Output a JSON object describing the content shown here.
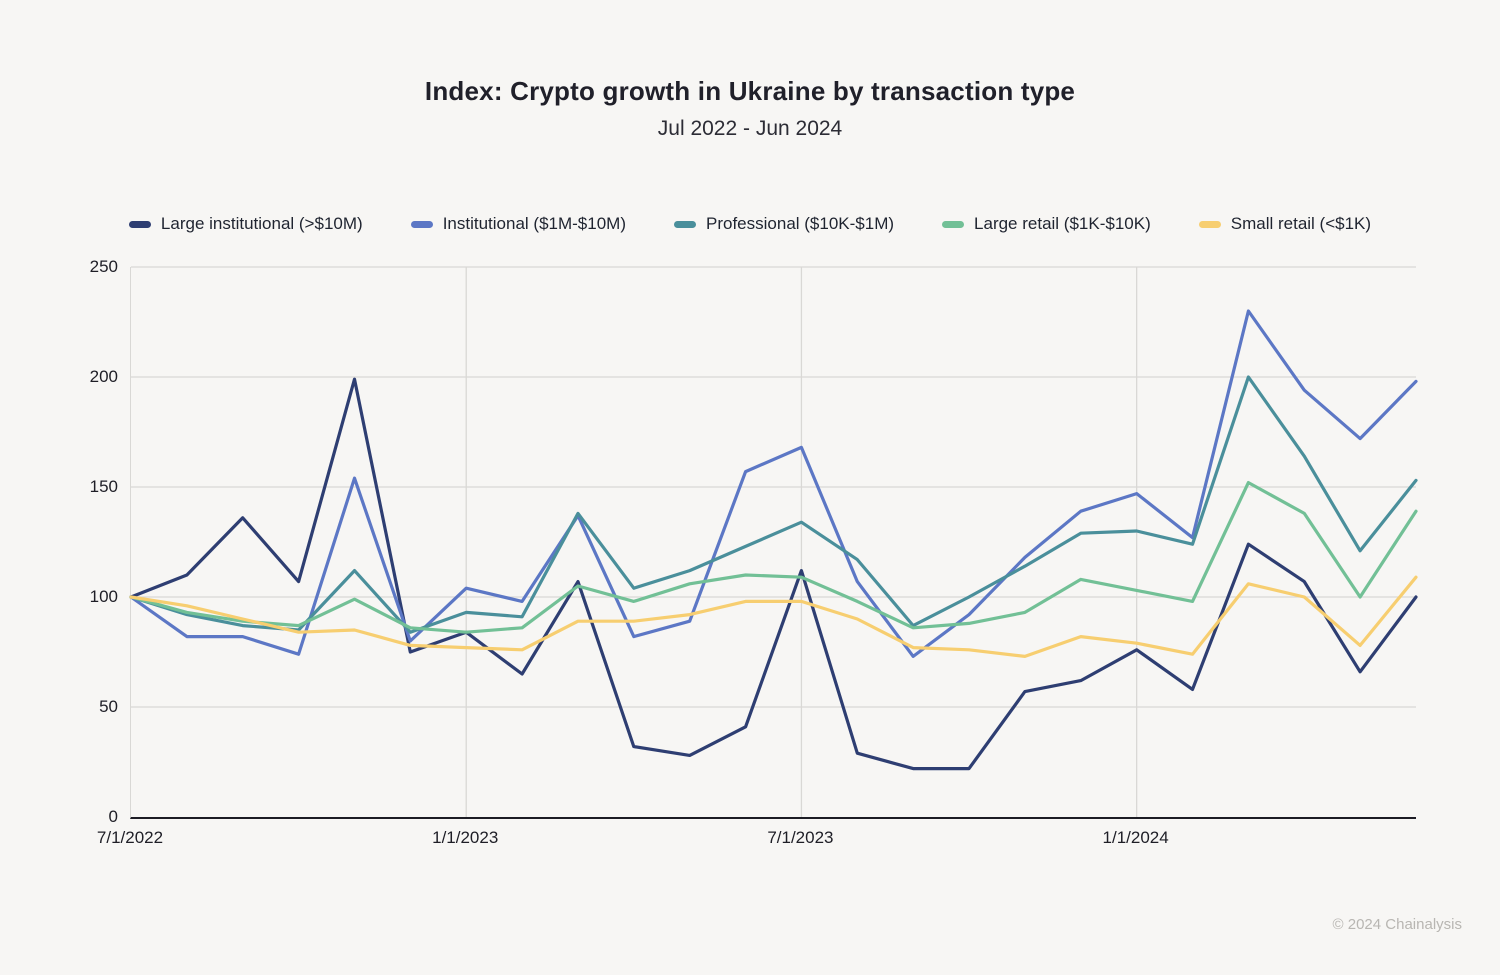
{
  "title": "Index: Crypto growth in Ukraine by transaction type",
  "subtitle": "Jul 2022 - Jun 2024",
  "footer": "© 2024 Chainalysis",
  "colors": {
    "background": "#f7f6f4",
    "grid": "#d9d8d5",
    "axis_line": "#1c1c24",
    "tick_text": "#1e1e26",
    "footer_text": "#b8b6b2"
  },
  "chart_data": {
    "type": "line",
    "title": "Index: Crypto growth in Ukraine by transaction type",
    "subtitle": "Jul 2022 - Jun 2024",
    "xlabel": "",
    "ylabel": "",
    "ylim": [
      0,
      250
    ],
    "yticks": [
      0,
      50,
      100,
      150,
      200,
      250
    ],
    "grid": true,
    "legend_position": "top",
    "categories": [
      "Jul 2022",
      "Aug 2022",
      "Sep 2022",
      "Oct 2022",
      "Nov 2022",
      "Dec 2022",
      "Jan 2023",
      "Feb 2023",
      "Mar 2023",
      "Apr 2023",
      "May 2023",
      "Jun 2023",
      "Jul 2023",
      "Aug 2023",
      "Sep 2023",
      "Oct 2023",
      "Nov 2023",
      "Dec 2023",
      "Jan 2024",
      "Feb 2024",
      "Mar 2024",
      "Apr 2024",
      "May 2024",
      "Jun 2024"
    ],
    "x_tick_labels": [
      "7/1/2022",
      "1/1/2023",
      "7/1/2023",
      "1/1/2024"
    ],
    "x_tick_month_indices": [
      0,
      6,
      12,
      18
    ],
    "x_gridline_month_indices": [
      6,
      12,
      18
    ],
    "series": [
      {
        "id": "large-institutional",
        "name": "Large institutional (>$10M)",
        "color": "#2e3e72",
        "values": [
          100,
          110,
          136,
          107,
          199,
          75,
          84,
          65,
          107,
          32,
          28,
          41,
          112,
          29,
          22,
          22,
          57,
          62,
          76,
          58,
          124,
          107,
          66,
          100
        ]
      },
      {
        "id": "institutional",
        "name": "Institutional ($1M-$10M)",
        "color": "#5c77c5",
        "values": [
          100,
          82,
          82,
          74,
          154,
          80,
          104,
          98,
          137,
          82,
          89,
          157,
          168,
          107,
          73,
          92,
          118,
          139,
          147,
          127,
          230,
          194,
          172,
          198
        ]
      },
      {
        "id": "professional",
        "name": "Professional ($10K-$1M)",
        "color": "#4a8f9b",
        "values": [
          100,
          92,
          87,
          85,
          112,
          84,
          93,
          91,
          138,
          104,
          112,
          123,
          134,
          117,
          87,
          100,
          114,
          129,
          130,
          124,
          200,
          164,
          121,
          153
        ]
      },
      {
        "id": "large-retail",
        "name": "Large retail ($1K-$10K)",
        "color": "#72c096",
        "values": [
          100,
          93,
          89,
          87,
          99,
          86,
          84,
          86,
          105,
          98,
          106,
          110,
          109,
          98,
          86,
          88,
          93,
          108,
          103,
          98,
          152,
          138,
          100,
          139
        ]
      },
      {
        "id": "small-retail",
        "name": "Small retail (<$1K)",
        "color": "#f7ce70",
        "values": [
          100,
          96,
          90,
          84,
          85,
          78,
          77,
          76,
          89,
          89,
          92,
          98,
          98,
          90,
          77,
          76,
          73,
          82,
          79,
          74,
          106,
          100,
          78,
          109
        ]
      }
    ]
  }
}
